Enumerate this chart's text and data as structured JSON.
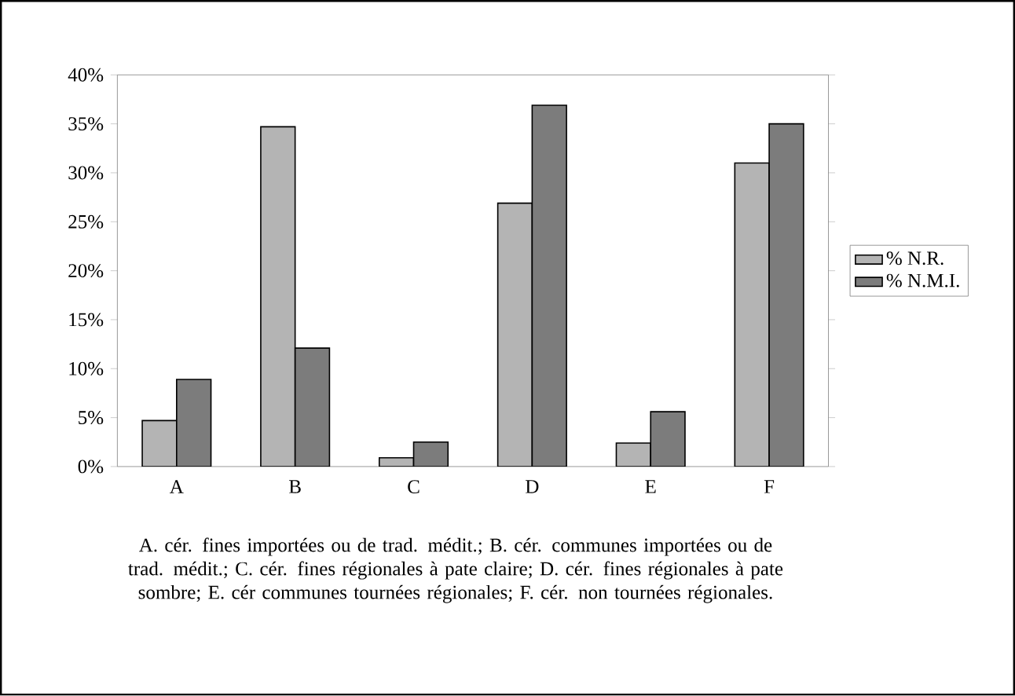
{
  "chart_data": {
    "type": "bar",
    "categories": [
      "A",
      "B",
      "C",
      "D",
      "E",
      "F"
    ],
    "series": [
      {
        "name": "% N.R.",
        "color": "#b4b4b4",
        "values": [
          4.7,
          34.7,
          0.9,
          26.9,
          2.4,
          31.0
        ]
      },
      {
        "name": "% N.M.I.",
        "color": "#7c7c7c",
        "values": [
          8.9,
          12.1,
          2.5,
          36.9,
          5.6,
          35.0
        ]
      }
    ],
    "ylim": [
      0,
      40
    ],
    "yticks": [
      {
        "value": 0,
        "label": "0%"
      },
      {
        "value": 5,
        "label": "5%"
      },
      {
        "value": 10,
        "label": "10%"
      },
      {
        "value": 15,
        "label": "15%"
      },
      {
        "value": 20,
        "label": "20%"
      },
      {
        "value": 25,
        "label": "25%"
      },
      {
        "value": 30,
        "label": "30%"
      },
      {
        "value": 35,
        "label": "35%"
      },
      {
        "value": 40,
        "label": "40%"
      }
    ],
    "grid": false,
    "legend": "right",
    "annotations": [
      "A. cér. fines importées ou de trad. médit.; B. cér. communes importées ou de trad. médit.; C. cér. fines régionales à pate claire; D. cér. fines régionales à pate sombre; E. cér communes tournées régionales; F. cér. non tournées régionales."
    ]
  }
}
